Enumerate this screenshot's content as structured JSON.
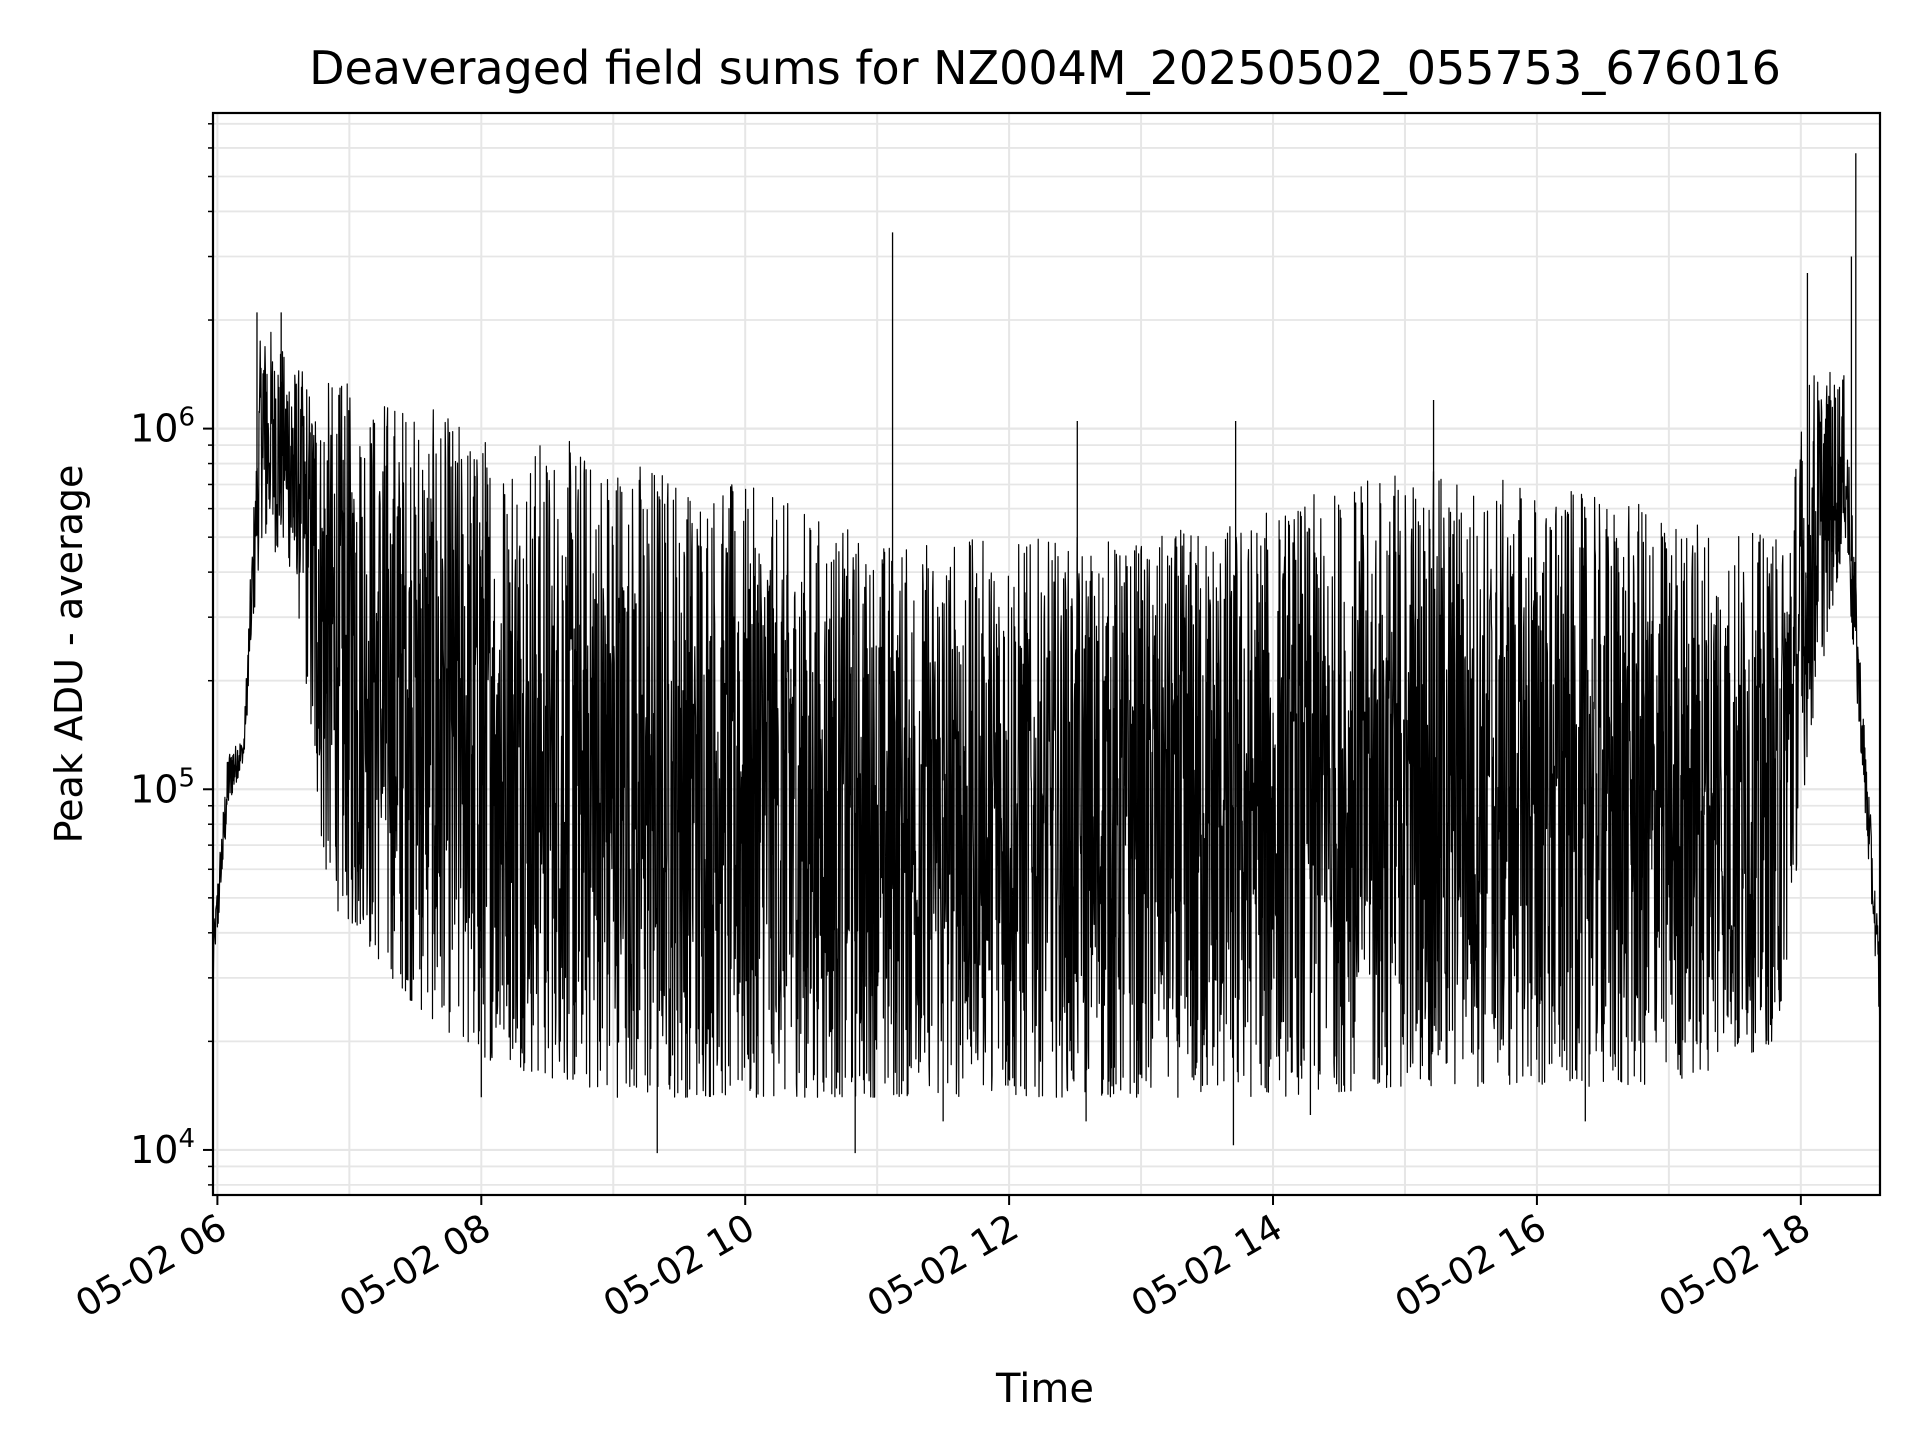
{
  "chart_data": {
    "type": "line",
    "title": "Deaveraged field sums for NZ004M_20250502_055753_676016",
    "xlabel": "Time",
    "ylabel": "Peak ADU - average",
    "y_scale": "log",
    "ylim": [
      7500,
      7500000
    ],
    "xlim": [
      "05-02 05:58",
      "05-02 18:36"
    ],
    "grid": true,
    "line_color": "#000000",
    "grid_color": "#e6e6e6",
    "x_ticks": [
      {
        "time": "05-02 06:00",
        "label": "05-02 06"
      },
      {
        "time": "05-02 08:00",
        "label": "05-02 08"
      },
      {
        "time": "05-02 10:00",
        "label": "05-02 10"
      },
      {
        "time": "05-02 12:00",
        "label": "05-02 12"
      },
      {
        "time": "05-02 14:00",
        "label": "05-02 14"
      },
      {
        "time": "05-02 16:00",
        "label": "05-02 16"
      },
      {
        "time": "05-02 18:00",
        "label": "05-02 18"
      }
    ],
    "y_ticks": [
      {
        "value": 10000,
        "base": "10",
        "exp": "4"
      },
      {
        "value": 100000,
        "base": "10",
        "exp": "5"
      },
      {
        "value": 1000000,
        "base": "10",
        "exp": "6"
      }
    ],
    "envelope": [
      {
        "time": "05-02 05:58",
        "low": 28000,
        "high": 40000
      },
      {
        "time": "05-02 06:05",
        "low": 90000,
        "high": 130000
      },
      {
        "time": "05-02 06:12",
        "low": 120000,
        "high": 140000
      },
      {
        "time": "05-02 06:20",
        "low": 500000,
        "high": 2100000
      },
      {
        "time": "05-02 06:35",
        "low": 400000,
        "high": 1500000
      },
      {
        "time": "05-02 06:50",
        "low": 50000,
        "high": 1400000
      },
      {
        "time": "05-02 07:30",
        "low": 25000,
        "high": 1200000
      },
      {
        "time": "05-02 08:00",
        "low": 18000,
        "high": 1000000
      },
      {
        "time": "05-02 09:00",
        "low": 14000,
        "high": 900000
      },
      {
        "time": "05-02 10:00",
        "low": 14000,
        "high": 700000
      },
      {
        "time": "05-02 11:00",
        "low": 14000,
        "high": 500000
      },
      {
        "time": "05-02 12:00",
        "low": 14000,
        "high": 500000
      },
      {
        "time": "05-02 13:00",
        "low": 14000,
        "high": 500000
      },
      {
        "time": "05-02 14:00",
        "low": 14000,
        "high": 600000
      },
      {
        "time": "05-02 15:00",
        "low": 15000,
        "high": 800000
      },
      {
        "time": "05-02 16:00",
        "low": 15000,
        "high": 700000
      },
      {
        "time": "05-02 17:00",
        "low": 15000,
        "high": 600000
      },
      {
        "time": "05-02 17:50",
        "low": 20000,
        "high": 500000
      },
      {
        "time": "05-02 18:05",
        "low": 150000,
        "high": 1500000
      },
      {
        "time": "05-02 18:20",
        "low": 500000,
        "high": 1400000
      },
      {
        "time": "05-02 18:28",
        "low": 110000,
        "high": 180000
      },
      {
        "time": "05-02 18:36",
        "low": 22000,
        "high": 35000
      }
    ],
    "spikes": [
      {
        "time": "05-02 06:18",
        "value": 2100000
      },
      {
        "time": "05-02 06:29",
        "value": 2100000
      },
      {
        "time": "05-02 11:07",
        "value": 3500000
      },
      {
        "time": "05-02 12:31",
        "value": 1050000
      },
      {
        "time": "05-02 13:43",
        "value": 1050000
      },
      {
        "time": "05-02 15:13",
        "value": 1200000
      },
      {
        "time": "05-02 18:03",
        "value": 2700000
      },
      {
        "time": "05-02 18:23",
        "value": 3000000
      },
      {
        "time": "05-02 18:25",
        "value": 5800000
      }
    ],
    "dips": [
      {
        "time": "05-02 08:00",
        "value": 14000
      },
      {
        "time": "05-02 09:20",
        "value": 9800
      },
      {
        "time": "05-02 10:50",
        "value": 9800
      },
      {
        "time": "05-02 11:30",
        "value": 12000
      },
      {
        "time": "05-02 12:35",
        "value": 12000
      },
      {
        "time": "05-02 13:42",
        "value": 10300
      },
      {
        "time": "05-02 14:17",
        "value": 12500
      },
      {
        "time": "05-02 16:22",
        "value": 12000
      }
    ]
  }
}
